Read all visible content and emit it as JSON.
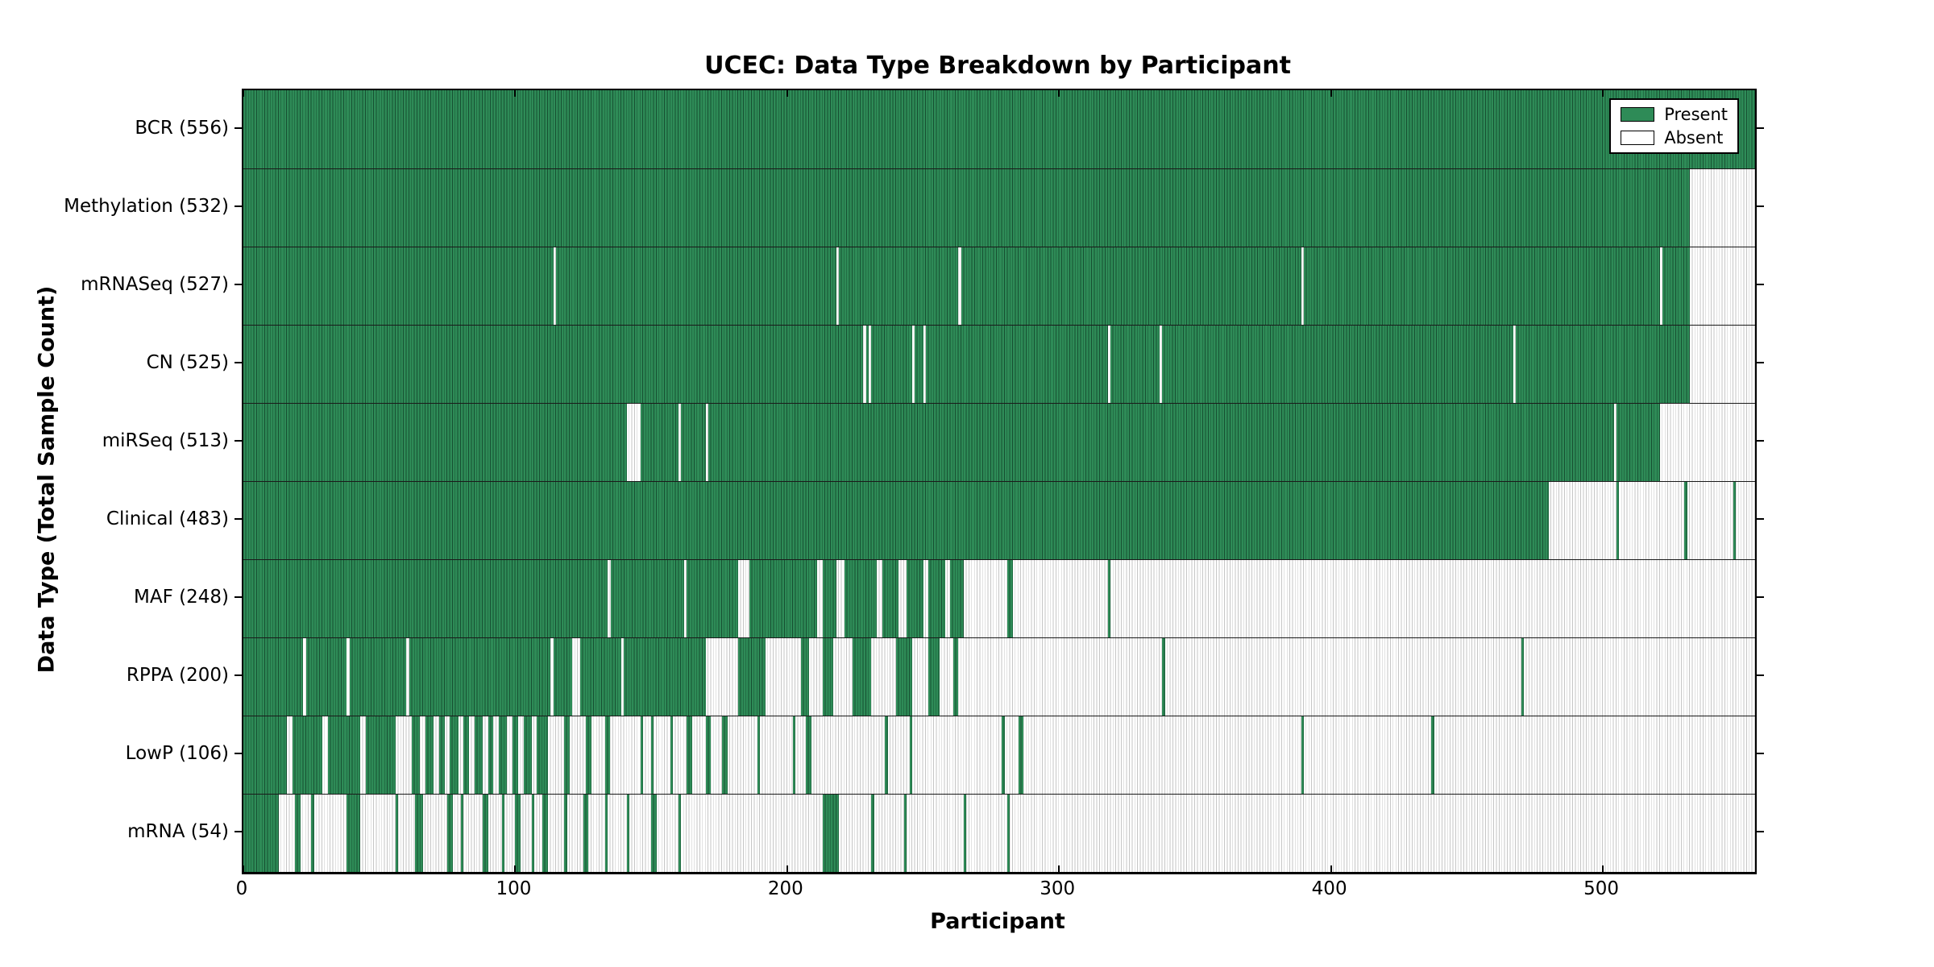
{
  "title": "UCEC: Data Type Breakdown by Participant",
  "xlabel": "Participant",
  "ylabel": "Data Type (Total Sample Count)",
  "legend": {
    "present": "Present",
    "absent": "Absent"
  },
  "colors": {
    "present": "#2E8B57",
    "present_line": "#175032",
    "absent": "#FFFFFF",
    "absent_line": "#C6C6C6",
    "axis": "#000000"
  },
  "chart_data": {
    "type": "heatmap",
    "title": "UCEC: Data Type Breakdown by Participant",
    "xlabel": "Participant",
    "ylabel": "Data Type (Total Sample Count)",
    "legend": [
      "Present",
      "Absent"
    ],
    "legend_position": "upper right",
    "x_range": [
      0,
      556
    ],
    "x_ticks": [
      0,
      100,
      200,
      300,
      400,
      500
    ],
    "grid": false,
    "rows": [
      {
        "label": "BCR",
        "count": 556,
        "display": "BCR (556)",
        "segments": [
          [
            0,
            556
          ]
        ]
      },
      {
        "label": "Methylation",
        "count": 532,
        "display": "Methylation (532)",
        "segments": [
          [
            0,
            532
          ]
        ]
      },
      {
        "label": "mRNASeq",
        "count": 527,
        "display": "mRNASeq (527)",
        "segments": [
          [
            0,
            114
          ],
          [
            115,
            218
          ],
          [
            219,
            263
          ],
          [
            264,
            389
          ],
          [
            390,
            521
          ],
          [
            522,
            532
          ]
        ]
      },
      {
        "label": "CN",
        "count": 525,
        "display": "CN (525)",
        "segments": [
          [
            0,
            228
          ],
          [
            229,
            230
          ],
          [
            231,
            246
          ],
          [
            247,
            250
          ],
          [
            251,
            318
          ],
          [
            319,
            337
          ],
          [
            338,
            467
          ],
          [
            468,
            532
          ]
        ]
      },
      {
        "label": "miRSeq",
        "count": 513,
        "display": "miRSeq (513)",
        "segments": [
          [
            0,
            141
          ],
          [
            146,
            160
          ],
          [
            161,
            170
          ],
          [
            171,
            504
          ],
          [
            505,
            521
          ]
        ]
      },
      {
        "label": "Clinical",
        "count": 483,
        "display": "Clinical (483)",
        "segments": [
          [
            0,
            480
          ],
          [
            505,
            506
          ],
          [
            530,
            531
          ],
          [
            548,
            549
          ]
        ]
      },
      {
        "label": "MAF",
        "count": 248,
        "display": "MAF (248)",
        "segments": [
          [
            0,
            134
          ],
          [
            135,
            162
          ],
          [
            163,
            182
          ],
          [
            186,
            211
          ],
          [
            213,
            218
          ],
          [
            221,
            233
          ],
          [
            235,
            241
          ],
          [
            244,
            250
          ],
          [
            252,
            258
          ],
          [
            260,
            265
          ],
          [
            281,
            283
          ],
          [
            318,
            319
          ]
        ]
      },
      {
        "label": "RPPA",
        "count": 200,
        "display": "RPPA (200)",
        "segments": [
          [
            0,
            22
          ],
          [
            23,
            38
          ],
          [
            39,
            60
          ],
          [
            61,
            113
          ],
          [
            114,
            121
          ],
          [
            124,
            139
          ],
          [
            140,
            170
          ],
          [
            182,
            192
          ],
          [
            205,
            208
          ],
          [
            213,
            217
          ],
          [
            224,
            231
          ],
          [
            240,
            246
          ],
          [
            252,
            256
          ],
          [
            261,
            263
          ],
          [
            338,
            339
          ],
          [
            470,
            471
          ]
        ]
      },
      {
        "label": "LowP",
        "count": 106,
        "display": "LowP (106)",
        "segments": [
          [
            0,
            16
          ],
          [
            18,
            29
          ],
          [
            31,
            43
          ],
          [
            45,
            56
          ],
          [
            62,
            65
          ],
          [
            67,
            70
          ],
          [
            72,
            74
          ],
          [
            76,
            79
          ],
          [
            81,
            83
          ],
          [
            85,
            88
          ],
          [
            90,
            92
          ],
          [
            94,
            97
          ],
          [
            99,
            101
          ],
          [
            103,
            106
          ],
          [
            108,
            112
          ],
          [
            118,
            120
          ],
          [
            126,
            128
          ],
          [
            133,
            135
          ],
          [
            146,
            147
          ],
          [
            150,
            151
          ],
          [
            157,
            158
          ],
          [
            163,
            165
          ],
          [
            170,
            172
          ],
          [
            176,
            178
          ],
          [
            189,
            190
          ],
          [
            202,
            203
          ],
          [
            207,
            209
          ],
          [
            236,
            237
          ],
          [
            245,
            246
          ],
          [
            279,
            280
          ],
          [
            285,
            287
          ],
          [
            389,
            390
          ],
          [
            437,
            438
          ]
        ]
      },
      {
        "label": "mRNA",
        "count": 54,
        "display": "mRNA (54)",
        "segments": [
          [
            0,
            13
          ],
          [
            19,
            21
          ],
          [
            25,
            26
          ],
          [
            38,
            43
          ],
          [
            56,
            57
          ],
          [
            63,
            66
          ],
          [
            75,
            77
          ],
          [
            80,
            81
          ],
          [
            88,
            90
          ],
          [
            95,
            96
          ],
          [
            100,
            102
          ],
          [
            106,
            107
          ],
          [
            110,
            112
          ],
          [
            118,
            119
          ],
          [
            125,
            127
          ],
          [
            133,
            134
          ],
          [
            141,
            142
          ],
          [
            150,
            152
          ],
          [
            160,
            161
          ],
          [
            213,
            219
          ],
          [
            231,
            232
          ],
          [
            243,
            244
          ],
          [
            265,
            266
          ],
          [
            281,
            282
          ]
        ]
      }
    ]
  }
}
